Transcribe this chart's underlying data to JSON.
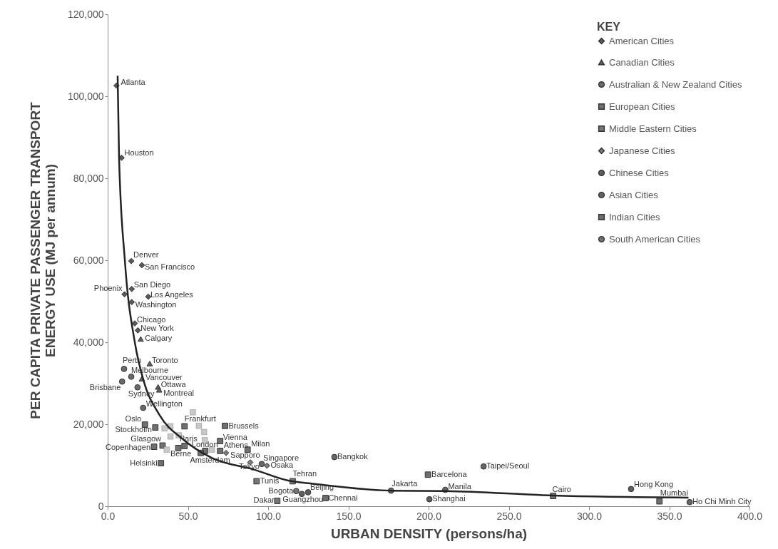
{
  "chart_data": {
    "type": "scatter",
    "xlabel": "URBAN DENSITY (persons/ha)",
    "ylabel": "PER CAPITA PRIVATE PASSENGER TRANSPORT\nENERGY USE (MJ per annum)",
    "legend_title": "KEY",
    "legend": "top right",
    "grid": false,
    "xlim": [
      0,
      400
    ],
    "xticks": [
      {
        "value": 0,
        "label": "0.0"
      },
      {
        "value": 50,
        "label": "50.0"
      },
      {
        "value": 100,
        "label": "100.0"
      },
      {
        "value": 150,
        "label": "150.0"
      },
      {
        "value": 200,
        "label": "200.0"
      },
      {
        "value": 250,
        "label": "250.0"
      },
      {
        "value": 300,
        "label": "300.0"
      },
      {
        "value": 350,
        "label": "350.0"
      },
      {
        "value": 400,
        "label": "400.0"
      }
    ],
    "ylim": [
      0,
      120000
    ],
    "yticks": [
      0,
      {
        "value": 20000,
        "label": "20,000"
      },
      {
        "value": 40000,
        "label": "40,000"
      },
      {
        "value": 60000,
        "label": "60,000"
      },
      {
        "value": 80000,
        "label": "80,000"
      },
      {
        "value": 100000,
        "label": "100,000"
      },
      {
        "value": 120000,
        "label": "120,000"
      }
    ],
    "series": [
      {
        "name": "American Cities",
        "color": "#5a5a5a",
        "marker": "diamond",
        "x": [
          5.5,
          8.7,
          14.7,
          21.3,
          15.0,
          10.5,
          25.3,
          15.0,
          16.9,
          18.8
        ],
        "values": [
          102600,
          85000,
          59800,
          58800,
          53000,
          51700,
          51100,
          49800,
          44600,
          42900
        ]
      },
      {
        "name": "Canadian Cities",
        "color": "#626262",
        "marker": "triangle",
        "x": [
          20.6,
          26.2,
          21.3,
          31.4,
          32.1
        ],
        "values": [
          40800,
          34800,
          31100,
          29100,
          28400
        ]
      },
      {
        "name": "Australian & New Zealand Cities",
        "color": "#6a6a6a",
        "marker": "circle",
        "x": [
          10.2,
          14.7,
          9.0,
          18.6,
          22.1
        ],
        "values": [
          33500,
          31600,
          30400,
          29000,
          24000
        ]
      },
      {
        "name": "European Cities",
        "color": "#707070",
        "marker": "square",
        "x": [
          23.2,
          29.7,
          47.9,
          73.1,
          70.1,
          87.2,
          70.1,
          34.2,
          28.9,
          47.9,
          44.0,
          60.8,
          58.0,
          33.2,
          199.6
        ],
        "values": [
          19900,
          19200,
          19500,
          19600,
          15900,
          13800,
          13500,
          14800,
          14500,
          14700,
          14200,
          13500,
          13000,
          10500,
          7700
        ]
      },
      {
        "name": "Middle Eastern Cities",
        "color": "#767676",
        "marker": "square",
        "x": [
          92.8,
          105.7,
          115.3,
          277.6
        ],
        "values": [
          6100,
          1300,
          6100,
          2500
        ]
      },
      {
        "name": "Japanese Cities",
        "color": "#7c7c7c",
        "marker": "diamond",
        "x": [
          73.8,
          88.9,
          99.3
        ],
        "values": [
          13000,
          10700,
          9900
        ]
      },
      {
        "name": "Chinese Cities",
        "color": "#5e5e5e",
        "marker": "circle",
        "x": [
          121.0,
          124.9,
          200.5,
          326.2
        ],
        "values": [
          3000,
          3400,
          1700,
          4200
        ]
      },
      {
        "name": "Asian Cities",
        "color": "#666666",
        "marker": "circle",
        "x": [
          96.0,
          176.6,
          210.4,
          141.3,
          234.3,
          362.7
        ],
        "values": [
          10300,
          3800,
          4000,
          12000,
          9700,
          1000
        ]
      },
      {
        "name": "Indian Cities",
        "color": "#6e6e6e",
        "marker": "square",
        "x": [
          135.8,
          343.9
        ],
        "values": [
          2000,
          1200
        ]
      },
      {
        "name": "South American Cities",
        "color": "#747474",
        "marker": "circle",
        "x": [
          117.5
        ],
        "values": [
          3700
        ]
      },
      {
        "color": "#c8c8c8",
        "marker": "square",
        "x": [
          53.1,
          39.1,
          56.8,
          60.1,
          35.4,
          39.1,
          44.3,
          36.8,
          60.5,
          65.0
        ],
        "values": [
          22900,
          19500,
          19600,
          18100,
          19000,
          17000,
          17300,
          13800,
          16100,
          13800
        ]
      },
      {
        "type": "line",
        "color": "#222222",
        "marker": "none",
        "line_style": "solid",
        "x": [
          6.2,
          7.1,
          10.7,
          16.9,
          22.2,
          32.4,
          47,
          64.8,
          91.5,
          112,
          130,
          177,
          211,
          277.5,
          362
        ],
        "values": [
          105000,
          85000,
          60000,
          40000,
          30900,
          22200,
          16300,
          11800,
          8900,
          6300,
          5400,
          3800,
          3700,
          2600,
          2100
        ]
      }
    ],
    "annotations": [
      {
        "text": "Atlanta",
        "x": 5.5,
        "y": 102600
      },
      {
        "text": "Houston",
        "x": 8.7,
        "y": 85000
      },
      {
        "text": "Denver",
        "x": 14.7,
        "y": 59800
      },
      {
        "text": "San Francisco",
        "x": 21.3,
        "y": 58750
      },
      {
        "text": "San Diego",
        "x": 15.0,
        "y": 52970
      },
      {
        "text": "Phoenix",
        "x": 10.5,
        "y": 51700
      },
      {
        "text": "Los Angeles",
        "x": 25.3,
        "y": 51100
      },
      {
        "text": "Washington",
        "x": 15.0,
        "y": 49800
      },
      {
        "text": "Chicago",
        "x": 16.9,
        "y": 44600
      },
      {
        "text": "New York",
        "x": 18.8,
        "y": 42900
      },
      {
        "text": "Calgary",
        "x": 20.6,
        "y": 40800
      },
      {
        "text": "Toronto",
        "x": 26.2,
        "y": 34800
      },
      {
        "text": "Vancouver",
        "x": 21.3,
        "y": 31100
      },
      {
        "text": "Ottawa",
        "x": 31.4,
        "y": 29100
      },
      {
        "text": "Montreal",
        "x": 32.1,
        "y": 28400
      },
      {
        "text": "Perth",
        "x": 10.2,
        "y": 33500
      },
      {
        "text": "Melbourne",
        "x": 14.7,
        "y": 31550
      },
      {
        "text": "Brisbane",
        "x": 9.0,
        "y": 30400
      },
      {
        "text": "Sydney",
        "x": 18.6,
        "y": 28950
      },
      {
        "text": "Wellington",
        "x": 22.1,
        "y": 24000
      },
      {
        "text": "Oslo",
        "x": 23.2,
        "y": 19850
      },
      {
        "text": "Stockholm",
        "x": 29.7,
        "y": 19150
      },
      {
        "text": "Frankfurt",
        "x": 47.9,
        "y": 19500
      },
      {
        "text": "Brussels",
        "x": 73.1,
        "y": 19550
      },
      {
        "text": "Vienna",
        "x": 70.1,
        "y": 15900
      },
      {
        "text": "Milan",
        "x": 87.2,
        "y": 13800
      },
      {
        "text": "Athens",
        "x": 70.1,
        "y": 13500
      },
      {
        "text": "Glasgow",
        "x": 34.2,
        "y": 14750
      },
      {
        "text": "Copenhagen",
        "x": 28.9,
        "y": 14500
      },
      {
        "text": "Paris",
        "x": 47.9,
        "y": 14650
      },
      {
        "text": "Berne",
        "x": 44.0,
        "y": 14200
      },
      {
        "text": "London",
        "x": 60.8,
        "y": 13500
      },
      {
        "text": "Amsterdam",
        "x": 58.0,
        "y": 13000
      },
      {
        "text": "Helsinki",
        "x": 33.2,
        "y": 10500
      },
      {
        "text": "Barcelona",
        "x": 199.6,
        "y": 7730
      },
      {
        "text": "Tunis",
        "x": 92.8,
        "y": 6080
      },
      {
        "text": "Dakar",
        "x": 105.7,
        "y": 1340
      },
      {
        "text": "Tehran",
        "x": 115.3,
        "y": 6080
      },
      {
        "text": "Cairo",
        "x": 277.6,
        "y": 2520
      },
      {
        "text": "Sapporo",
        "x": 73.8,
        "y": 13000
      },
      {
        "text": "Tokyo",
        "x": 88.9,
        "y": 10700
      },
      {
        "text": "Osaka",
        "x": 99.3,
        "y": 9850
      },
      {
        "text": "Guangzhou",
        "x": 121.0,
        "y": 2970
      },
      {
        "text": "Beijing",
        "x": 124.9,
        "y": 3420
      },
      {
        "text": "Shanghai",
        "x": 200.5,
        "y": 1680
      },
      {
        "text": "Hong Kong",
        "x": 326.2,
        "y": 4170
      },
      {
        "text": "Singapore",
        "x": 96.0,
        "y": 10300
      },
      {
        "text": "Jakarta",
        "x": 176.6,
        "y": 3800
      },
      {
        "text": "Manila",
        "x": 210.4,
        "y": 4030
      },
      {
        "text": "Bangkok",
        "x": 141.3,
        "y": 11950
      },
      {
        "text": "Taipei/Seoul",
        "x": 234.3,
        "y": 9690
      },
      {
        "text": "Ho Chi Minh City",
        "x": 362.7,
        "y": 1010
      },
      {
        "text": "Chennai",
        "x": 135.8,
        "y": 1980
      },
      {
        "text": "Mumbai",
        "x": 343.9,
        "y": 1230
      },
      {
        "text": "Bogota",
        "x": 117.5,
        "y": 3650
      }
    ]
  }
}
